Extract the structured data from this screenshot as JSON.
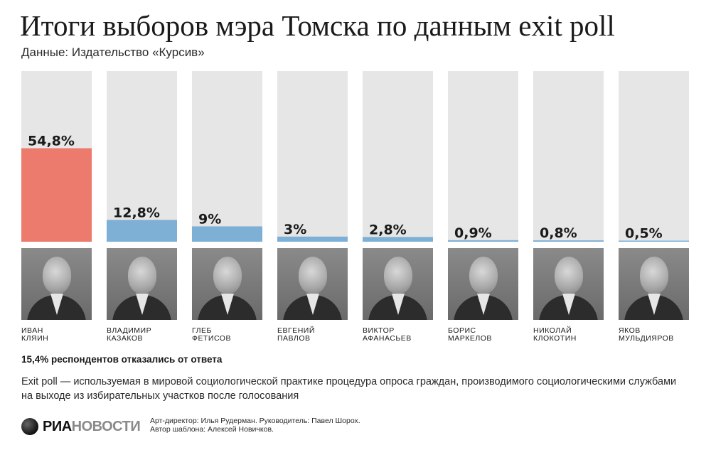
{
  "header": {
    "title": "Итоги выборов мэра Томска по данным exit poll",
    "source": "Данные: Издательство «Курсив»"
  },
  "colors": {
    "track": "#e6e6e6",
    "winner": "#ec7a6d",
    "others": "#7eb0d6",
    "label": "#1a1a1a"
  },
  "chart_data": {
    "type": "bar",
    "title": "Итоги выборов мэра Томска по данным exit poll",
    "categories": [
      "Иван Кляин",
      "Владимир Казаков",
      "Глеб Фетисов",
      "Евгений Павлов",
      "Виктор Афанасьев",
      "Борис Маркелов",
      "Николай Клокотин",
      "Яков Мульдияров"
    ],
    "values": [
      54.8,
      12.8,
      9,
      3,
      2.8,
      0.9,
      0.8,
      0.5
    ],
    "value_labels": [
      "54,8%",
      "12,8%",
      "9%",
      "3%",
      "2,8%",
      "0,9%",
      "0,8%",
      "0,5%"
    ],
    "ylim": [
      0,
      100
    ],
    "grid": false,
    "legend": "none"
  },
  "candidates": [
    {
      "first": "Иван",
      "last": "Кляин"
    },
    {
      "first": "Владимир",
      "last": "Казаков"
    },
    {
      "first": "Глеб",
      "last": "Фетисов"
    },
    {
      "first": "Евгений",
      "last": "Павлов"
    },
    {
      "first": "Виктор",
      "last": "Афанасьев"
    },
    {
      "first": "Борис",
      "last": "Маркелов"
    },
    {
      "first": "Николай",
      "last": "Клокотин"
    },
    {
      "first": "Яков",
      "last": "Мульдияров"
    }
  ],
  "footer": {
    "refused": "15,4% респондентов отказались от ответа",
    "note": "Exit poll — используемая в мировой социологической практике процедура опроса граждан, производимого социологическими службами на выходе из избирательных участков после голосования",
    "logo_ria": "РИА",
    "logo_novosti": "НОВОСТИ",
    "credits_line1": "Арт-директор: Илья Рудерман. Руководитель: Павел Шорох.",
    "credits_line2": "Автор шаблона: Алексей Новичков."
  }
}
